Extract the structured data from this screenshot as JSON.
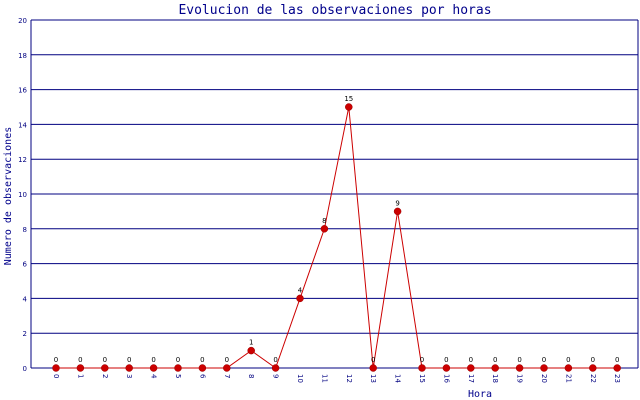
{
  "chart_data": {
    "type": "line",
    "title": "Evolucion de las observaciones por horas",
    "xlabel": "Hora",
    "ylabel": "Numero de observaciones",
    "categories": [
      "0",
      "1",
      "2",
      "3",
      "4",
      "5",
      "6",
      "7",
      "8",
      "9",
      "10",
      "11",
      "12",
      "13",
      "14",
      "15",
      "16",
      "17",
      "18",
      "19",
      "20",
      "21",
      "22",
      "23"
    ],
    "series": [
      {
        "values": [
          0,
          0,
          0,
          0,
          0,
          0,
          0,
          0,
          1,
          0,
          4,
          8,
          15,
          0,
          9,
          0,
          0,
          0,
          0,
          0,
          0,
          0,
          0,
          0
        ]
      }
    ],
    "ylim": [
      0,
      20
    ],
    "yticks": [
      "0",
      "2",
      "4",
      "6",
      "8",
      "10",
      "12",
      "14",
      "16",
      "18",
      "20"
    ],
    "grid": true,
    "data_labels": true,
    "colors": {
      "line": "#cc0000",
      "marker": "#cc0000",
      "grid": "#000080",
      "axis": "#000080",
      "text": "#00008b"
    }
  }
}
